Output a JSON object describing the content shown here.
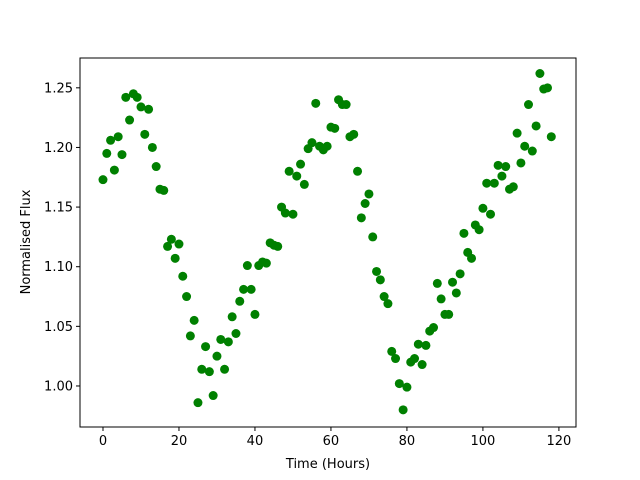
{
  "chart_data": {
    "type": "scatter",
    "xlabel": "Time (Hours)",
    "ylabel": "Normalised Flux",
    "x": [
      0,
      1,
      2,
      3,
      4,
      5,
      6,
      7,
      8,
      9,
      10,
      11,
      12,
      13,
      14,
      15,
      16,
      17,
      18,
      19,
      20,
      21,
      22,
      23,
      24,
      25,
      26,
      27,
      28,
      29,
      30,
      31,
      32,
      33,
      34,
      35,
      36,
      37,
      38,
      39,
      40,
      41,
      42,
      43,
      44,
      45,
      46,
      47,
      48,
      49,
      50,
      51,
      52,
      53,
      54,
      55,
      56,
      57,
      58,
      59,
      60,
      61,
      62,
      63,
      64,
      65,
      66,
      67,
      68,
      69,
      70,
      71,
      72,
      73,
      74,
      75,
      76,
      77,
      78,
      79,
      80,
      81,
      82,
      83,
      84,
      85,
      86,
      87,
      88,
      89,
      90,
      91,
      92,
      93,
      94,
      95,
      96,
      97,
      98,
      99,
      100,
      101,
      102,
      103,
      104,
      105,
      106,
      107,
      108,
      109,
      110,
      111,
      112,
      113,
      114,
      115,
      116,
      117,
      118
    ],
    "series": [
      {
        "color": "#008000",
        "values": [
          1.173,
          1.195,
          1.206,
          1.181,
          1.209,
          1.194,
          1.242,
          1.223,
          1.245,
          1.242,
          1.234,
          1.211,
          1.232,
          1.2,
          1.184,
          1.165,
          1.164,
          1.117,
          1.123,
          1.107,
          1.119,
          1.092,
          1.075,
          1.042,
          1.055,
          0.986,
          1.014,
          1.033,
          1.012,
          0.992,
          1.025,
          1.039,
          1.014,
          1.037,
          1.058,
          1.044,
          1.071,
          1.081,
          1.101,
          1.081,
          1.06,
          1.101,
          1.104,
          1.103,
          1.12,
          1.118,
          1.117,
          1.15,
          1.145,
          1.18,
          1.144,
          1.176,
          1.186,
          1.169,
          1.199,
          1.204,
          1.237,
          1.201,
          1.198,
          1.201,
          1.217,
          1.216,
          1.24,
          1.236,
          1.236,
          1.209,
          1.211,
          1.18,
          1.141,
          1.153,
          1.161,
          1.125,
          1.096,
          1.089,
          1.075,
          1.069,
          1.029,
          1.023,
          1.002,
          0.98,
          0.999,
          1.02,
          1.023,
          1.035,
          1.018,
          1.034,
          1.046,
          1.049,
          1.086,
          1.073,
          1.06,
          1.06,
          1.087,
          1.078,
          1.094,
          1.128,
          1.112,
          1.107,
          1.135,
          1.131,
          1.149,
          1.17,
          1.144,
          1.17,
          1.185,
          1.176,
          1.184,
          1.165,
          1.167,
          1.212,
          1.187,
          1.201,
          1.236,
          1.197,
          1.218,
          1.262,
          1.249,
          1.25,
          1.209
        ]
      }
    ],
    "xlim": [
      -6.05,
      124.5
    ],
    "ylim": [
      0.9656,
      1.275
    ],
    "xticks": [
      0,
      20,
      40,
      60,
      80,
      100,
      120
    ],
    "yticks": [
      {
        "value": 1.0,
        "label": "1.00"
      },
      1.05,
      {
        "value": 1.1,
        "label": "1.10"
      },
      1.15,
      {
        "value": 1.2,
        "label": "1.20"
      },
      1.25
    ],
    "grid": false
  }
}
